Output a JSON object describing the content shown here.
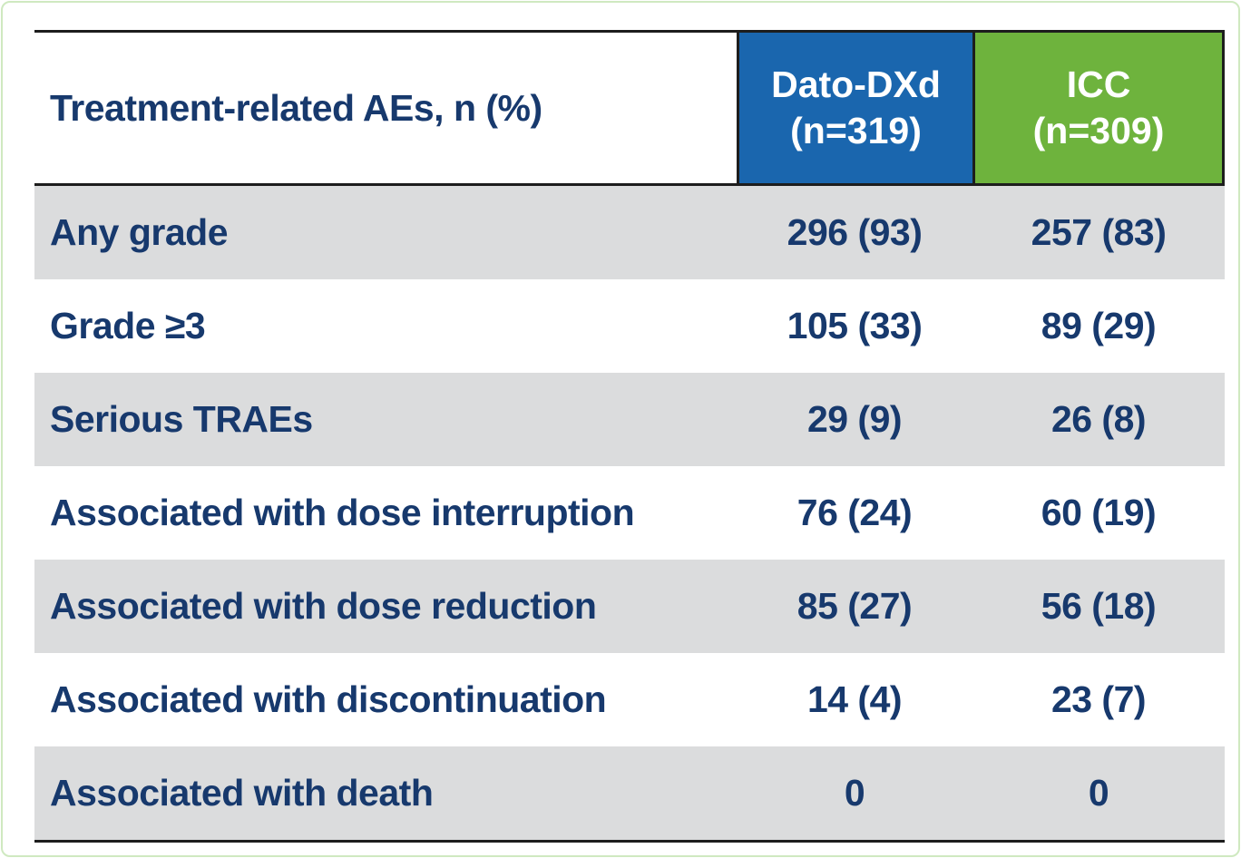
{
  "colors": {
    "navy": "#17396d",
    "dato_blue": "#1a66ae",
    "icc_green": "#6eb33d",
    "row_gray": "#dbdcdd",
    "line": "#1d1d1d",
    "frame_border": "#cfe9c0"
  },
  "table": {
    "header": {
      "label": "Treatment-related AEs, n (%)",
      "dato": {
        "line1": "Dato-DXd",
        "line2": "(n=319)"
      },
      "icc": {
        "line1": "ICC",
        "line2": "(n=309)"
      }
    },
    "rows": [
      {
        "label": "Any grade",
        "dato": "296 (93)",
        "icc": "257 (83)"
      },
      {
        "label": "Grade ≥3",
        "dato": "105 (33)",
        "icc": "89 (29)"
      },
      {
        "label": "Serious TRAEs",
        "dato": "29 (9)",
        "icc": "26 (8)"
      },
      {
        "label": "Associated with dose interruption",
        "dato": "76 (24)",
        "icc": "60 (19)"
      },
      {
        "label": "Associated with dose reduction",
        "dato": "85 (27)",
        "icc": "56 (18)"
      },
      {
        "label": "Associated with discontinuation",
        "dato": "14 (4)",
        "icc": "23 (7)"
      },
      {
        "label": "Associated with death",
        "dato": "0",
        "icc": "0"
      }
    ]
  },
  "chart_data": {
    "type": "table",
    "title": "Treatment-related AEs, n (%)",
    "columns": [
      "Treatment-related AEs, n (%)",
      "Dato-DXd (n=319)",
      "ICC (n=309)"
    ],
    "group_sizes": {
      "Dato-DXd": 319,
      "ICC": 309
    },
    "rows": [
      {
        "category": "Any grade",
        "dato_n": 296,
        "dato_pct": 93,
        "icc_n": 257,
        "icc_pct": 83
      },
      {
        "category": "Grade ≥3",
        "dato_n": 105,
        "dato_pct": 33,
        "icc_n": 89,
        "icc_pct": 29
      },
      {
        "category": "Serious TRAEs",
        "dato_n": 29,
        "dato_pct": 9,
        "icc_n": 26,
        "icc_pct": 8
      },
      {
        "category": "Associated with dose interruption",
        "dato_n": 76,
        "dato_pct": 24,
        "icc_n": 60,
        "icc_pct": 19
      },
      {
        "category": "Associated with dose reduction",
        "dato_n": 85,
        "dato_pct": 27,
        "icc_n": 56,
        "icc_pct": 18
      },
      {
        "category": "Associated with discontinuation",
        "dato_n": 14,
        "dato_pct": 4,
        "icc_n": 23,
        "icc_pct": 7
      },
      {
        "category": "Associated with death",
        "dato_n": 0,
        "dato_pct": null,
        "icc_n": 0,
        "icc_pct": null
      }
    ],
    "layout_hints": {
      "header_fill_dato": "#1a66ae",
      "header_fill_icc": "#6eb33d",
      "alternating_row_fill": "#dbdcdd",
      "rules": "horizontal only, dark, top/header-bottom/table-bottom"
    }
  }
}
